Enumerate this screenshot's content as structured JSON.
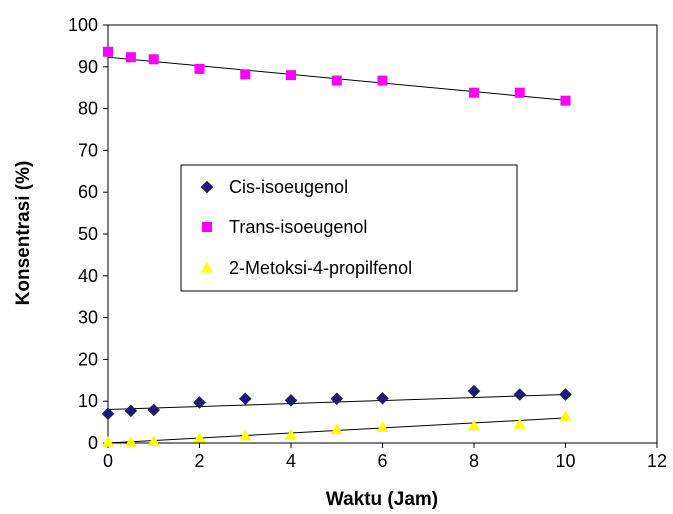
{
  "chart_data": {
    "type": "scatter",
    "title": "",
    "xlabel": "Waktu (Jam)",
    "ylabel": "Konsentrasi (%)",
    "xlim": [
      0,
      12
    ],
    "ylim": [
      0,
      100
    ],
    "xticks": [
      0,
      2,
      4,
      6,
      8,
      10,
      12
    ],
    "yticks": [
      0,
      10,
      20,
      30,
      40,
      50,
      60,
      70,
      80,
      90,
      100
    ],
    "grid": false,
    "legend_position": "center",
    "series": [
      {
        "name": "Cis-isoeugenol",
        "marker": "diamond",
        "color": "#1f1a7a",
        "x": [
          0,
          0.5,
          1,
          2,
          3,
          4,
          5,
          6,
          8,
          9,
          10
        ],
        "y": [
          7.0,
          7.7,
          7.9,
          9.7,
          10.6,
          10.2,
          10.6,
          10.7,
          12.4,
          11.6,
          11.6
        ],
        "trendline": [
          [
            0,
            8.0
          ],
          [
            10,
            11.6
          ]
        ]
      },
      {
        "name": "Trans-isoeugenol",
        "marker": "square",
        "color": "#ff00ff",
        "x": [
          0,
          0.5,
          1,
          2,
          3,
          4,
          5,
          6,
          8,
          9,
          10
        ],
        "y": [
          93.6,
          92.3,
          91.8,
          89.5,
          88.2,
          88.0,
          86.7,
          86.7,
          83.8,
          83.8,
          81.9
        ],
        "trendline": [
          [
            0,
            92.3
          ],
          [
            10,
            82.0
          ]
        ]
      },
      {
        "name": "2-Metoksi-4-propilfenol",
        "marker": "triangle",
        "color": "#ffff00",
        "x": [
          0,
          0.5,
          1,
          2,
          3,
          4,
          5,
          6,
          8,
          9,
          10
        ],
        "y": [
          0.2,
          0.2,
          0.4,
          1.2,
          1.7,
          1.9,
          3.2,
          3.7,
          4.1,
          4.5,
          6.4
        ],
        "trendline": [
          [
            0,
            0.0
          ],
          [
            10,
            6.0
          ]
        ]
      }
    ]
  }
}
